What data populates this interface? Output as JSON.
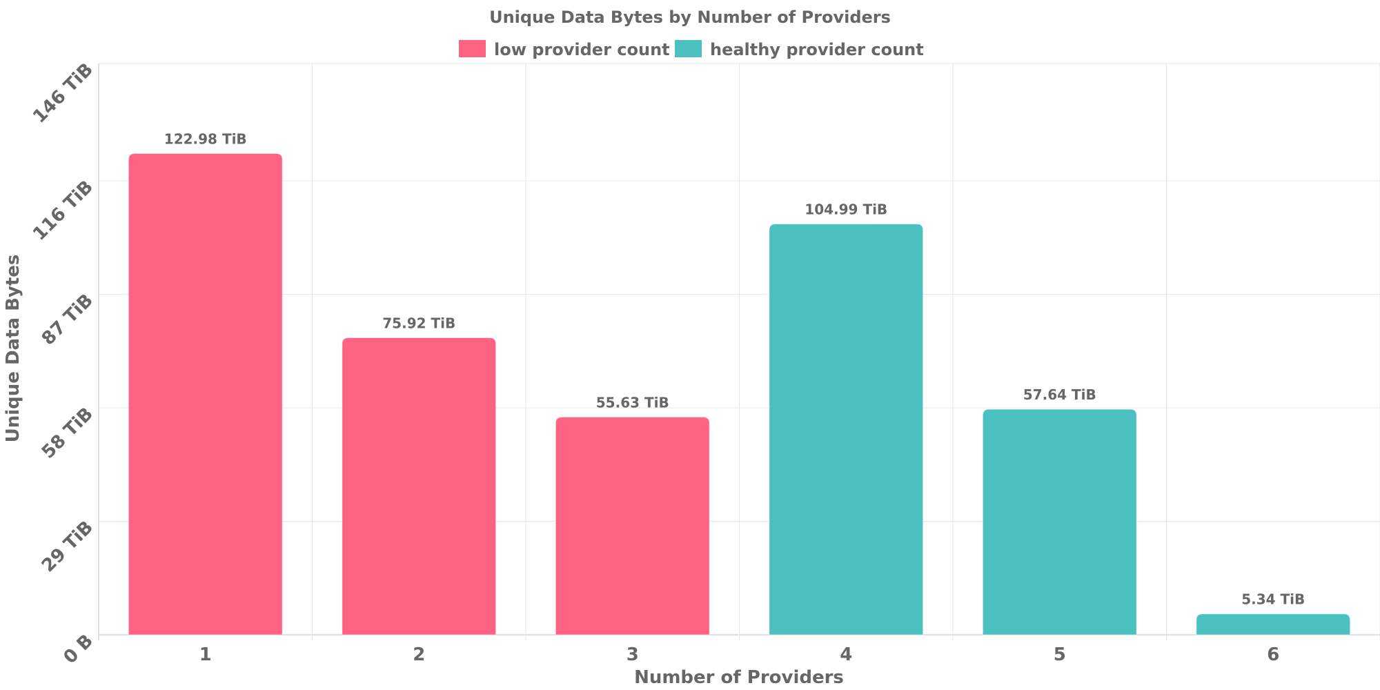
{
  "colors": {
    "low": "#ff6384",
    "healthy": "#4bc0c0",
    "text": "#666666",
    "grid": "#e6e6e6"
  },
  "chart_data": {
    "type": "bar",
    "title": "Unique Data Bytes by Number of Providers",
    "xlabel": "Number of Providers",
    "ylabel": "Unique Data Bytes",
    "categories": [
      "1",
      "2",
      "3",
      "4",
      "5",
      "6"
    ],
    "values": [
      122.98,
      75.92,
      55.63,
      104.99,
      57.64,
      5.34
    ],
    "value_labels": [
      "122.98 TiB",
      "75.92 TiB",
      "55.63 TiB",
      "104.99 TiB",
      "57.64 TiB",
      "5.34 TiB"
    ],
    "bar_series": [
      "low",
      "low",
      "low",
      "healthy",
      "healthy",
      "healthy"
    ],
    "ylim": [
      0,
      146
    ],
    "y_ticks": [
      0,
      29,
      58,
      87,
      116,
      146
    ],
    "y_tick_labels": [
      "0 B",
      "29 TiB",
      "58 TiB",
      "87 TiB",
      "116 TiB",
      "146 TiB"
    ],
    "grid": true,
    "legend_position": "top-center",
    "legend": [
      {
        "key": "low",
        "label": "low provider count"
      },
      {
        "key": "healthy",
        "label": "healthy provider count"
      }
    ]
  }
}
